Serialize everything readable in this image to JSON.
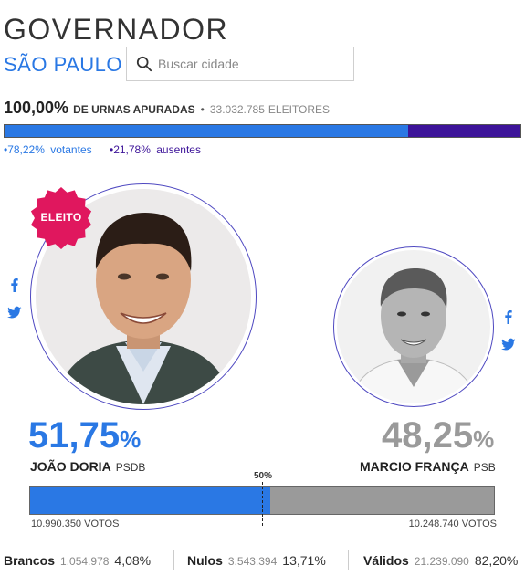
{
  "header": {
    "title": "GOVERNADOR",
    "state": "SÃO PAULO",
    "search_placeholder": "Buscar cidade"
  },
  "summary": {
    "apuradas_pct": "100,00%",
    "apuradas_label": "DE URNAS APURADAS",
    "separator": "•",
    "eleitores_num": "33.032.785",
    "eleitores_label": "ELEITORES",
    "votantes_pct": "78,22%",
    "votantes_label": "votantes",
    "ausentes_pct": "21,78%",
    "ausentes_label": "ausentes",
    "votantes_fraction": 0.7822,
    "bullet": "•"
  },
  "colors": {
    "winner_blue": "#2a78e4",
    "absent_purple": "#3d1499",
    "loser_gray": "#9a9a9a",
    "badge_pink": "#e0175e"
  },
  "candidates": [
    {
      "badge": "ELEITO",
      "pct_value": "51,75",
      "pct_symbol": "%",
      "name": "JOÃO DORIA",
      "party": "PSDB",
      "votes": "10.990.350 VOTOS",
      "share_fraction": 0.5175,
      "icons": [
        "facebook-icon",
        "twitter-icon"
      ]
    },
    {
      "pct_value": "48,25",
      "pct_symbol": "%",
      "name": "MARCIO FRANÇA",
      "party": "PSB",
      "votes": "10.248.740 VOTOS",
      "share_fraction": 0.4825,
      "icons": [
        "facebook-icon",
        "twitter-icon"
      ]
    }
  ],
  "threshold_label": "50%",
  "footer": {
    "brancos": {
      "label": "Brancos",
      "num": "1.054.978",
      "pct": "4,08%"
    },
    "nulos": {
      "label": "Nulos",
      "num": "3.543.394",
      "pct": "13,71%"
    },
    "validos": {
      "label": "Válidos",
      "num": "21.239.090",
      "pct": "82,20%"
    }
  }
}
